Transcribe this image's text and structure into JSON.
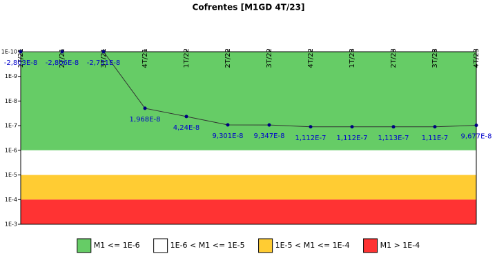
{
  "chart_data": {
    "type": "line",
    "title": "Cofrentes [M1GD 4T/23]",
    "categories": [
      "1T/21",
      "2T/21",
      "3T/21",
      "4T/21",
      "1T/22",
      "2T/22",
      "3T/22",
      "4T/22",
      "1T/23",
      "2T/23",
      "3T/23",
      "4T/23"
    ],
    "series": [
      {
        "name": "M1",
        "color": "#000080",
        "values": [
          -2.803e-08,
          -2.806e-08,
          -2.731e-08,
          1.968e-08,
          4.24e-08,
          9.301e-08,
          9.347e-08,
          1.112e-07,
          1.112e-07,
          1.113e-07,
          1.11e-07,
          9.677e-08
        ],
        "value_labels": [
          "-2,803E-8",
          "-2,806E-8",
          "-2,731E-8",
          "1,968E-8",
          "4,24E-8",
          "9,301E-8",
          "9,347E-8",
          "1,112E-7",
          "1,112E-7",
          "1,113E-7",
          "1,11E-7",
          "9,677E-8"
        ]
      }
    ],
    "ylim": [
      1e-10,
      0.001
    ],
    "yscale": "log",
    "y_reversed": true,
    "yticks": [
      {
        "value": 1e-10,
        "label": "1E-10"
      },
      {
        "value": 1e-09,
        "label": "1E-9"
      },
      {
        "value": 1e-08,
        "label": "1E-8"
      },
      {
        "value": 1e-07,
        "label": "1E-7"
      },
      {
        "value": 1e-06,
        "label": "1E-6"
      },
      {
        "value": 1e-05,
        "label": "1E-5"
      },
      {
        "value": 0.0001,
        "label": "1E-4"
      },
      {
        "value": 0.001,
        "label": "1E-3"
      }
    ],
    "bands": [
      {
        "name": "M1 <= 1E-6",
        "from": 1e-10,
        "to": 1e-06,
        "color": "#66cc66"
      },
      {
        "name": "1E-6 < M1 <= 1E-5",
        "from": 1e-06,
        "to": 1e-05,
        "color": "#ffffff"
      },
      {
        "name": "1E-5 < M1 <= 1E-4",
        "from": 1e-05,
        "to": 0.0001,
        "color": "#ffcc33"
      },
      {
        "name": "M1 > 1E-4",
        "from": 0.0001,
        "to": 0.001,
        "color": "#ff3333"
      }
    ],
    "legend": "bottom"
  }
}
